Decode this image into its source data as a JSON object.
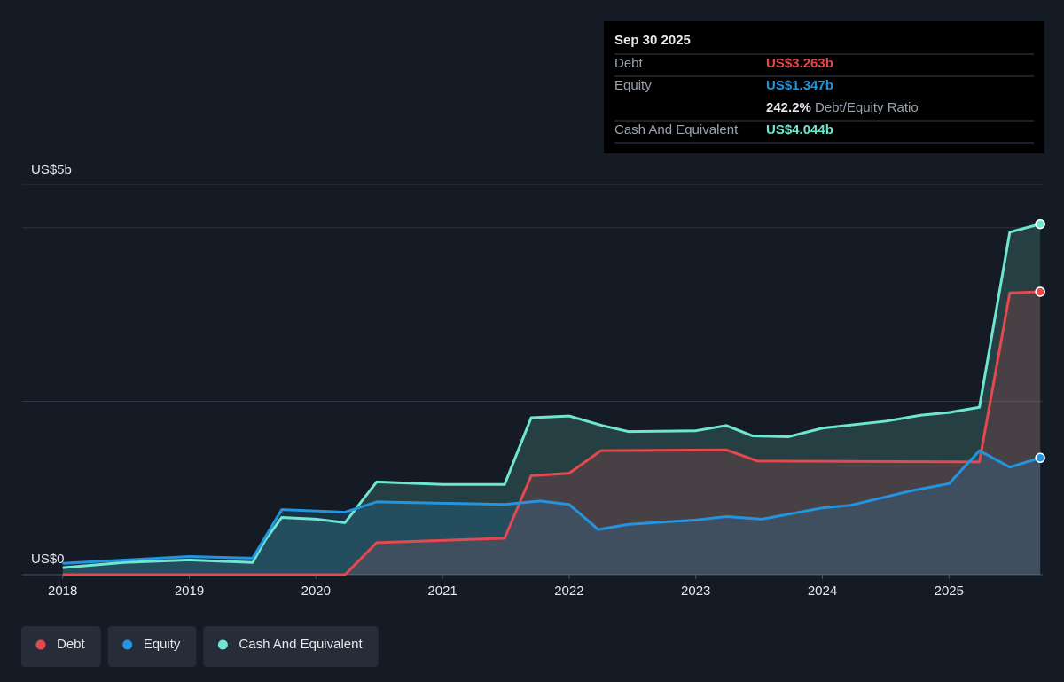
{
  "chart_data": {
    "type": "area",
    "y_top_label": "US$5b",
    "xlim": [
      2017.68,
      2025.74
    ],
    "xticks": [
      2018,
      2019,
      2020,
      2021,
      2022,
      2023,
      2024,
      2025
    ],
    "ylim": [
      0,
      4.5
    ],
    "yticks": [
      {
        "value": 0,
        "label": "US$0"
      },
      {
        "value": 2,
        "label": ""
      },
      {
        "value": 4,
        "label": ""
      }
    ],
    "grid": true,
    "series": [
      {
        "name": "Cash And Equivalent",
        "color": "#6ee6d2",
        "x": [
          2018.0,
          2018.48,
          2019.0,
          2019.5,
          2019.6,
          2019.73,
          2020.0,
          2020.23,
          2020.48,
          2021.0,
          2021.49,
          2021.7,
          2022.0,
          2022.26,
          2022.47,
          2023.0,
          2023.24,
          2023.45,
          2023.73,
          2024.0,
          2024.5,
          2024.78,
          2025.0,
          2025.24,
          2025.48,
          2025.72
        ],
        "values": [
          0.08,
          0.14,
          0.17,
          0.14,
          0.4,
          0.66,
          0.64,
          0.6,
          1.07,
          1.04,
          1.04,
          1.81,
          1.83,
          1.72,
          1.65,
          1.66,
          1.72,
          1.6,
          1.59,
          1.69,
          1.77,
          1.84,
          1.87,
          1.93,
          3.95,
          4.044
        ]
      },
      {
        "name": "Debt",
        "color": "#e5484d",
        "x": [
          2018.0,
          2020.23,
          2020.48,
          2021.49,
          2021.7,
          2022.0,
          2022.25,
          2023.24,
          2023.49,
          2025.24,
          2025.48,
          2025.72
        ],
        "values": [
          0,
          0,
          0.37,
          0.42,
          1.14,
          1.17,
          1.43,
          1.44,
          1.31,
          1.3,
          3.25,
          3.263
        ]
      },
      {
        "name": "Equity",
        "color": "#2394df",
        "x": [
          2018.0,
          2019.0,
          2019.5,
          2019.73,
          2020.23,
          2020.48,
          2021.49,
          2021.77,
          2022.0,
          2022.23,
          2022.47,
          2023.0,
          2023.24,
          2023.52,
          2024.0,
          2024.22,
          2024.71,
          2025.0,
          2025.24,
          2025.48,
          2025.72
        ],
        "values": [
          0.13,
          0.21,
          0.19,
          0.75,
          0.72,
          0.84,
          0.81,
          0.85,
          0.81,
          0.52,
          0.58,
          0.63,
          0.67,
          0.64,
          0.77,
          0.8,
          0.97,
          1.05,
          1.43,
          1.24,
          1.347
        ]
      }
    ],
    "legend_order": [
      "Debt",
      "Equity",
      "Cash And Equivalent"
    ],
    "tooltip": {
      "date": "Sep 30 2025",
      "rows": [
        {
          "label": "Debt",
          "value": "US$3.263b"
        },
        {
          "label": "Equity",
          "value": "US$1.347b"
        }
      ],
      "ratio_value": "242.2%",
      "ratio_label": "Debt/Equity Ratio",
      "cash_label": "Cash And Equivalent",
      "cash_value": "US$4.044b"
    }
  }
}
